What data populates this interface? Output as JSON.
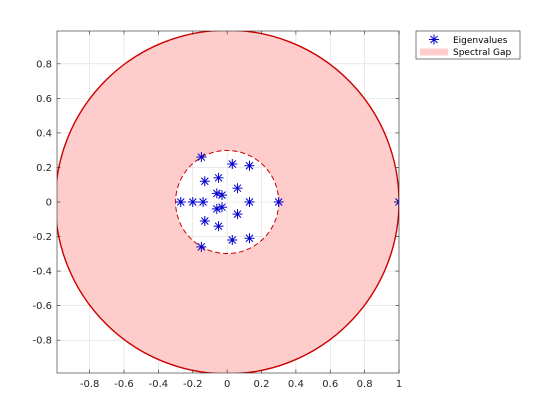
{
  "chart_data": {
    "type": "scatter",
    "title": "",
    "xlabel": "",
    "ylabel": "",
    "xlim": [
      -0.99,
      1.0
    ],
    "ylim": [
      -0.99,
      0.99
    ],
    "grid": true,
    "legend_position": "top-right, outside plot area",
    "x_ticks": [
      -0.8,
      -0.6,
      -0.4,
      -0.2,
      0,
      0.2,
      0.4,
      0.6,
      0.8,
      1
    ],
    "x_tick_labels": [
      "-0.8",
      "-0.6",
      "-0.4",
      "-0.2",
      "0",
      "0.2",
      "0.4",
      "0.6",
      "0.8",
      "1"
    ],
    "y_ticks": [
      0.8,
      0.6,
      0.4,
      0.2,
      0,
      -0.2,
      -0.4,
      -0.6,
      -0.8
    ],
    "y_tick_labels": [
      "0.8",
      "0.6",
      "0.4",
      "0.2",
      "0",
      "-0.2",
      "-0.4",
      "-0.6",
      "-0.8"
    ],
    "spectral_gap": {
      "outer_radius": 1.0,
      "inner_radius": 0.3,
      "fill_color": "#ffcccc",
      "edge_color": "#cc0000"
    },
    "series": [
      {
        "name": "Eigenvalues",
        "marker": "asterisk",
        "color": "#0000cc",
        "points": [
          [
            1.0,
            0.0
          ],
          [
            0.3,
            0.0
          ],
          [
            -0.27,
            0.0
          ],
          [
            -0.15,
            0.26
          ],
          [
            -0.15,
            -0.26
          ],
          [
            0.03,
            0.22
          ],
          [
            0.03,
            -0.22
          ],
          [
            0.13,
            0.21
          ],
          [
            0.13,
            -0.21
          ],
          [
            -0.05,
            0.14
          ],
          [
            -0.05,
            -0.14
          ],
          [
            -0.13,
            0.12
          ],
          [
            -0.13,
            -0.11
          ],
          [
            0.06,
            0.08
          ],
          [
            0.06,
            -0.07
          ],
          [
            0.13,
            0.0
          ],
          [
            -0.2,
            0.0
          ],
          [
            -0.14,
            0.0
          ],
          [
            -0.06,
            0.05
          ],
          [
            -0.06,
            -0.04
          ],
          [
            -0.03,
            0.04
          ],
          [
            -0.03,
            -0.03
          ]
        ]
      }
    ],
    "legend": [
      "Eigenvalues",
      "Spectral Gap"
    ]
  }
}
